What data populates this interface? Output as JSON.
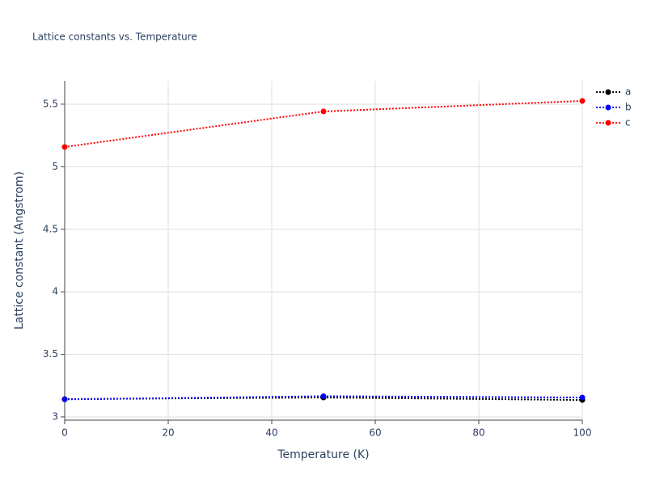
{
  "chart_data": {
    "type": "line",
    "title": "Lattice constants vs. Temperature",
    "x_label": "Temperature (K)",
    "y_label": "Lattice constant (Angstrom)",
    "x": [
      0,
      50,
      100
    ],
    "series": [
      {
        "name": "a",
        "color": "#000000",
        "values": [
          3.142,
          3.155,
          3.135
        ]
      },
      {
        "name": "b",
        "color": "#0000ff",
        "values": [
          3.14,
          3.165,
          3.155
        ]
      },
      {
        "name": "c",
        "color": "#ff0000",
        "values": [
          5.158,
          5.442,
          5.526
        ]
      }
    ],
    "xlim": [
      0,
      100
    ],
    "xticks": [
      0,
      20,
      40,
      60,
      80,
      100
    ],
    "ylim": [
      2.974,
      5.687
    ],
    "yticks": [
      3,
      3.5,
      4,
      4.5,
      5,
      5.5
    ],
    "grid": true,
    "legend": "right",
    "line_style": "dotted"
  }
}
